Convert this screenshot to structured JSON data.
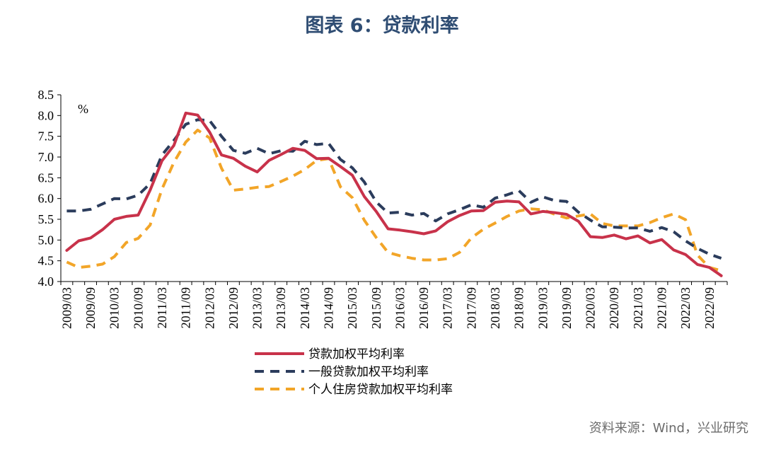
{
  "title": "图表 6：贷款利率",
  "source": "资料来源：Wind，兴业研究",
  "chart_data": {
    "type": "line",
    "unit_label": "%",
    "ylim": [
      4.0,
      8.5
    ],
    "yticks": [
      "4.0",
      "4.5",
      "5.0",
      "5.5",
      "6.0",
      "6.5",
      "7.0",
      "7.5",
      "8.0",
      "8.5"
    ],
    "xtick_labels": [
      "2009/03",
      "2009/09",
      "2010/03",
      "2010/09",
      "2011/03",
      "2011/09",
      "2012/03",
      "2012/09",
      "2013/03",
      "2013/09",
      "2014/03",
      "2014/09",
      "2015/03",
      "2015/09",
      "2016/03",
      "2016/09",
      "2017/03",
      "2017/09",
      "2018/03",
      "2018/09",
      "2019/03",
      "2019/09",
      "2020/03",
      "2020/09",
      "2021/03",
      "2021/09",
      "2022/03",
      "2022/09"
    ],
    "x": [
      "2009/03",
      "2009/06",
      "2009/09",
      "2009/12",
      "2010/03",
      "2010/06",
      "2010/09",
      "2010/12",
      "2011/03",
      "2011/06",
      "2011/09",
      "2011/12",
      "2012/03",
      "2012/06",
      "2012/09",
      "2012/12",
      "2013/03",
      "2013/06",
      "2013/09",
      "2013/12",
      "2014/03",
      "2014/06",
      "2014/09",
      "2014/12",
      "2015/03",
      "2015/06",
      "2015/09",
      "2015/12",
      "2016/03",
      "2016/06",
      "2016/09",
      "2016/12",
      "2017/03",
      "2017/06",
      "2017/09",
      "2017/12",
      "2018/03",
      "2018/06",
      "2018/09",
      "2018/12",
      "2019/03",
      "2019/06",
      "2019/09",
      "2019/12",
      "2020/03",
      "2020/06",
      "2020/09",
      "2020/12",
      "2021/03",
      "2021/06",
      "2021/09",
      "2021/12",
      "2022/03",
      "2022/06",
      "2022/09",
      "2022/12"
    ],
    "series": [
      {
        "name": "贷款加权平均利率",
        "color": "#c8324a",
        "dash": "solid",
        "values": [
          4.75,
          4.98,
          5.05,
          5.25,
          5.5,
          5.57,
          5.6,
          6.2,
          6.91,
          7.28,
          8.06,
          8.01,
          7.6,
          7.05,
          6.97,
          6.78,
          6.64,
          6.92,
          7.06,
          7.21,
          7.16,
          6.96,
          6.97,
          6.77,
          6.56,
          6.05,
          5.69,
          5.27,
          5.24,
          5.2,
          5.15,
          5.22,
          5.44,
          5.59,
          5.7,
          5.71,
          5.91,
          5.94,
          5.92,
          5.63,
          5.69,
          5.66,
          5.62,
          5.45,
          5.08,
          5.06,
          5.12,
          5.03,
          5.1,
          4.93,
          5.01,
          4.76,
          4.65,
          4.41,
          4.34,
          4.14
        ]
      },
      {
        "name": "一般贷款加权平均利率",
        "color": "#2b3c5c",
        "dash": "dashed",
        "values": [
          5.7,
          5.7,
          5.74,
          5.87,
          6.0,
          5.99,
          6.08,
          6.36,
          7.05,
          7.4,
          7.79,
          7.9,
          7.88,
          7.5,
          7.16,
          7.09,
          7.21,
          7.08,
          7.15,
          7.14,
          7.38,
          7.3,
          7.33,
          6.94,
          6.74,
          6.4,
          5.92,
          5.65,
          5.67,
          5.6,
          5.64,
          5.46,
          5.63,
          5.73,
          5.85,
          5.79,
          6.01,
          6.09,
          6.19,
          5.91,
          6.04,
          5.95,
          5.93,
          5.67,
          5.48,
          5.32,
          5.31,
          5.29,
          5.29,
          5.21,
          5.3,
          5.2,
          4.98,
          4.8,
          4.66,
          4.56
        ]
      },
      {
        "name": "个人住房贷款加权平均利率",
        "color": "#f2a528",
        "dash": "dashed",
        "values": [
          4.47,
          4.34,
          4.37,
          4.42,
          4.6,
          4.94,
          5.04,
          5.36,
          6.23,
          6.87,
          7.36,
          7.65,
          7.46,
          6.73,
          6.2,
          6.23,
          6.27,
          6.29,
          6.41,
          6.54,
          6.7,
          6.92,
          6.96,
          6.28,
          6.02,
          5.48,
          5.06,
          4.7,
          4.62,
          4.56,
          4.52,
          4.52,
          4.55,
          4.7,
          5.05,
          5.26,
          5.41,
          5.57,
          5.7,
          5.75,
          5.73,
          5.62,
          5.53,
          5.58,
          5.63,
          5.4,
          5.34,
          5.34,
          5.34,
          5.42,
          5.54,
          5.63,
          5.49,
          4.64,
          4.34,
          4.26
        ]
      }
    ],
    "legend_placement": "bottom",
    "grid": false
  }
}
